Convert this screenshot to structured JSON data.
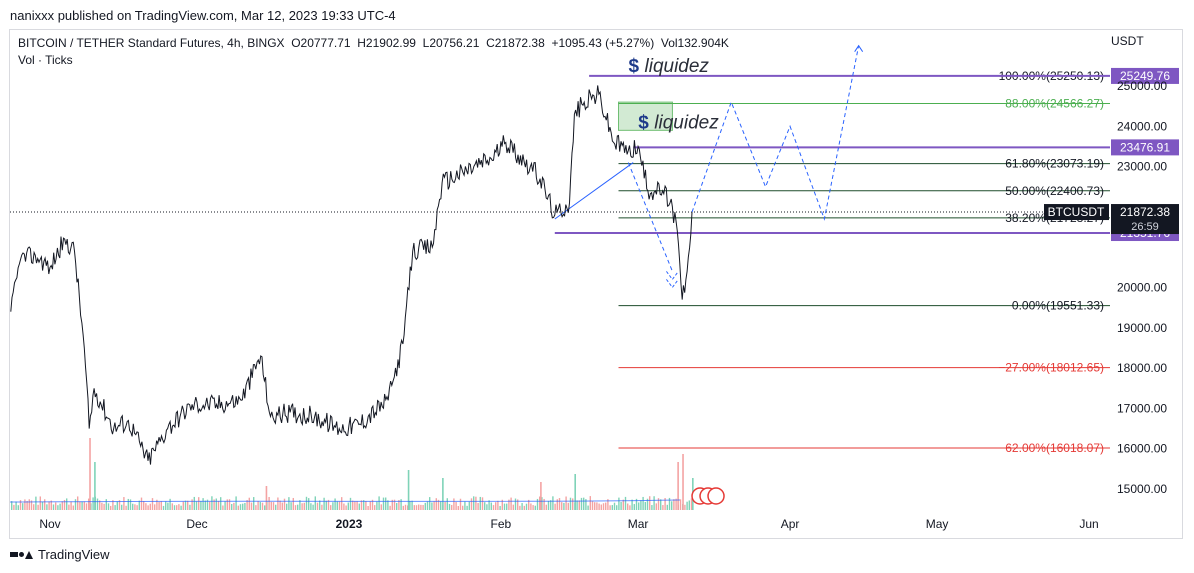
{
  "header": {
    "published": "nanixxx published on TradingView.com, Mar 12, 2023 19:33 UTC-4"
  },
  "legend": {
    "symbol": "BITCOIN / TETHER Standard Futures, 4h, BINGX",
    "open": "O20777.71",
    "high": "H21902.99",
    "low": "L20756.21",
    "close": "C21872.38",
    "change": "+1095.43 (+5.27%)",
    "volume": "Vol132.904K",
    "volume_indicator": "Vol · Ticks"
  },
  "footer": {
    "brand": "TradingView"
  },
  "colors": {
    "price": "#131722",
    "fib_green": "#1e4d2b",
    "fib_light_green": "#4caf50",
    "fib_red": "#e53935",
    "level_purple": "#7e57c2",
    "projection_blue": "#2962ff",
    "zone_green": "#c8e6c9",
    "volume_up": "#7fd3b8",
    "volume_down": "#f4a3a3"
  },
  "chart_data": {
    "type": "candlestick",
    "currency_label": "USDT",
    "y_axis_ticks": [
      15000,
      16000,
      17000,
      18000,
      19000,
      20000,
      23000,
      24000,
      25000
    ],
    "y_tick_labels": [
      "15000.00",
      "16000.00",
      "17000.00",
      "18000.00",
      "19000.00",
      "20000.00",
      "23000.00",
      "24000.00",
      "25000.00"
    ],
    "ylim": [
      14500,
      26000
    ],
    "x_axis_labels": [
      {
        "label": "Nov",
        "date": "2022-11-01",
        "bold": false
      },
      {
        "label": "Dec",
        "date": "2022-12-01",
        "bold": false
      },
      {
        "label": "2023",
        "date": "2023-01-01",
        "bold": true
      },
      {
        "label": "Feb",
        "date": "2023-02-01",
        "bold": false
      },
      {
        "label": "Mar",
        "date": "2023-03-01",
        "bold": false
      },
      {
        "label": "Apr",
        "date": "2023-04-01",
        "bold": false
      },
      {
        "label": "May",
        "date": "2023-05-01",
        "bold": false
      },
      {
        "label": "Jun",
        "date": "2023-06-01",
        "bold": false
      }
    ],
    "price_path": [
      [
        "2022-10-24",
        19400
      ],
      [
        "2022-10-26",
        20700
      ],
      [
        "2022-10-29",
        20800
      ],
      [
        "2022-11-01",
        20500
      ],
      [
        "2022-11-04",
        21200
      ],
      [
        "2022-11-06",
        20900
      ],
      [
        "2022-11-08",
        18500
      ],
      [
        "2022-11-09",
        16500
      ],
      [
        "2022-11-10",
        17500
      ],
      [
        "2022-11-14",
        16500
      ],
      [
        "2022-11-17",
        16700
      ],
      [
        "2022-11-21",
        15700
      ],
      [
        "2022-11-25",
        16500
      ],
      [
        "2022-11-30",
        17100
      ],
      [
        "2022-12-05",
        17100
      ],
      [
        "2022-12-10",
        17200
      ],
      [
        "2022-12-14",
        18300
      ],
      [
        "2022-12-16",
        16800
      ],
      [
        "2022-12-20",
        16900
      ],
      [
        "2022-12-25",
        16800
      ],
      [
        "2022-12-30",
        16500
      ],
      [
        "2023-01-03",
        16600
      ],
      [
        "2023-01-09",
        17200
      ],
      [
        "2023-01-12",
        18600
      ],
      [
        "2023-01-14",
        20900
      ],
      [
        "2023-01-18",
        21000
      ],
      [
        "2023-01-20",
        22600
      ],
      [
        "2023-01-25",
        22900
      ],
      [
        "2023-01-30",
        23200
      ],
      [
        "2023-02-02",
        23600
      ],
      [
        "2023-02-07",
        23000
      ],
      [
        "2023-02-09",
        22700
      ],
      [
        "2023-02-12",
        21800
      ],
      [
        "2023-02-15",
        22100
      ],
      [
        "2023-02-16",
        24300
      ],
      [
        "2023-02-18",
        24600
      ],
      [
        "2023-02-21",
        24800
      ],
      [
        "2023-02-24",
        23600
      ],
      [
        "2023-02-27",
        23400
      ],
      [
        "2023-03-01",
        23500
      ],
      [
        "2023-03-03",
        22400
      ],
      [
        "2023-03-06",
        22400
      ],
      [
        "2023-03-08",
        22000
      ],
      [
        "2023-03-09",
        21400
      ],
      [
        "2023-03-10",
        19700
      ],
      [
        "2023-03-11",
        20400
      ],
      [
        "2023-03-12",
        21872
      ]
    ],
    "fib_levels": [
      {
        "ratio": "100.00%",
        "label": "100.00%(25250.13)",
        "price": 25250.13,
        "color": "#1e4d2b",
        "label_color": "#131722"
      },
      {
        "ratio": "88.00%",
        "label": "88.00%(24566.27)",
        "price": 24566.27,
        "color": "#4caf50",
        "label_color": "#4caf50"
      },
      {
        "ratio": "61.80%",
        "label": "61.80%(23073.19)",
        "price": 23073.19,
        "color": "#1e4d2b",
        "label_color": "#131722"
      },
      {
        "ratio": "50.00%",
        "label": "50.00%(22400.73)",
        "price": 22400.73,
        "color": "#1e4d2b",
        "label_color": "#131722"
      },
      {
        "ratio": "38.20%",
        "label": "38.20%(21728.27)",
        "price": 21728.27,
        "color": "#1e4d2b",
        "label_color": "#131722"
      },
      {
        "ratio": "0.00%",
        "label": "0.00%(19551.33)",
        "price": 19551.33,
        "color": "#1e4d2b",
        "label_color": "#131722"
      },
      {
        "ratio": "-27.00%",
        "label": "−27.00%(18012.65)",
        "price": 18012.65,
        "color": "#e53935",
        "label_color": "#e53935"
      },
      {
        "ratio": "-62.00%",
        "label": "−62.00%(16018.07)",
        "price": 16018.07,
        "color": "#e53935",
        "label_color": "#e53935"
      }
    ],
    "fib_start_date": "2023-02-25",
    "horizontal_levels": [
      {
        "price": 25249.76,
        "label": "25249.76",
        "start_date": "2023-02-19"
      },
      {
        "price": 23476.91,
        "label": "23476.91",
        "start_date": "2023-02-28"
      },
      {
        "price": 21351.76,
        "label": "21351.76",
        "start_date": "2023-02-12"
      }
    ],
    "current_price": {
      "symbol": "BTCUSDT",
      "price": 21872.38,
      "label": "21872.38",
      "countdown": "26:59"
    },
    "annotations": [
      {
        "text": "liquidez",
        "date": "2023-02-25",
        "price": 25500,
        "boxed": false
      },
      {
        "text": "liquidez",
        "date": "2023-02-27",
        "price": 24100,
        "boxed": true
      }
    ],
    "liquidity_zone": {
      "start_date": "2023-02-25",
      "end_date": "2023-03-08",
      "top": 24600,
      "bottom": 23900
    },
    "projection_path": [
      [
        "2023-03-12",
        21872
      ],
      [
        "2023-03-20",
        24600
      ],
      [
        "2023-03-27",
        22500
      ],
      [
        "2023-04-01",
        24000
      ],
      [
        "2023-04-08",
        21700
      ],
      [
        "2023-04-15",
        26000
      ]
    ],
    "down_projection": [
      [
        "2023-02-27",
        23100
      ],
      [
        "2023-03-08",
        20400
      ]
    ],
    "trend_line": [
      [
        "2023-02-12",
        21700
      ],
      [
        "2023-02-28",
        23100
      ]
    ],
    "volume": [
      {
        "date": "2022-11-09",
        "value": 0.9,
        "up": false
      },
      {
        "date": "2022-11-10",
        "value": 0.6,
        "up": true
      },
      {
        "date": "2022-12-15",
        "value": 0.3,
        "up": false
      },
      {
        "date": "2023-01-13",
        "value": 0.5,
        "up": true
      },
      {
        "date": "2023-01-20",
        "value": 0.4,
        "up": true
      },
      {
        "date": "2023-02-09",
        "value": 0.35,
        "up": false
      },
      {
        "date": "2023-02-16",
        "value": 0.45,
        "up": true
      },
      {
        "date": "2023-03-09",
        "value": 0.6,
        "up": false
      },
      {
        "date": "2023-03-10",
        "value": 0.7,
        "up": false
      },
      {
        "date": "2023-03-12",
        "value": 0.4,
        "up": true
      }
    ]
  }
}
